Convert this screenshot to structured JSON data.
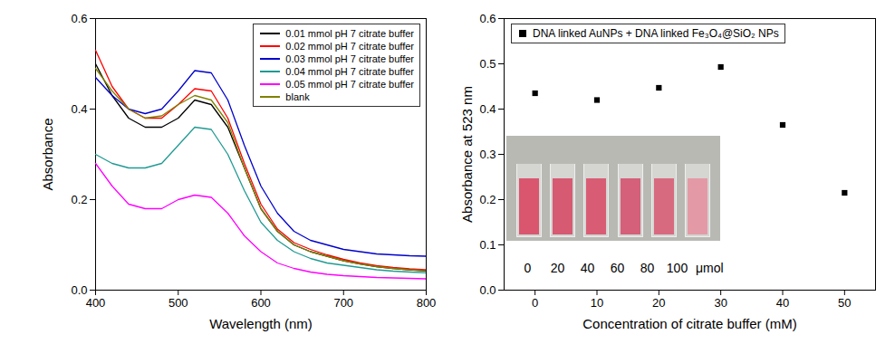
{
  "chart_data": [
    {
      "type": "line",
      "x_label": "Wavelength (nm)",
      "y_label": "Absorbance",
      "x": [
        400,
        420,
        440,
        460,
        480,
        500,
        520,
        540,
        560,
        580,
        600,
        620,
        640,
        660,
        680,
        700,
        720,
        740,
        760,
        780,
        800
      ],
      "xlim": [
        400,
        800
      ],
      "xticks": [
        400,
        500,
        600,
        700,
        800
      ],
      "ylim": [
        0,
        0.6
      ],
      "yticks": [
        {
          "value": 0,
          "label": "0.0"
        },
        0.2,
        0.4,
        0.6
      ],
      "legend": "top-right",
      "series": [
        {
          "name": "0.01 mmol pH 7 citrate buffer",
          "color": "#000000",
          "values": [
            0.5,
            0.43,
            0.38,
            0.36,
            0.36,
            0.38,
            0.42,
            0.41,
            0.36,
            0.27,
            0.18,
            0.13,
            0.1,
            0.085,
            0.075,
            0.065,
            0.058,
            0.052,
            0.048,
            0.045,
            0.042
          ]
        },
        {
          "name": "0.02 mmol pH 7 citrate buffer",
          "color": "#ff0000",
          "values": [
            0.53,
            0.45,
            0.4,
            0.38,
            0.38,
            0.41,
            0.445,
            0.44,
            0.38,
            0.28,
            0.19,
            0.135,
            0.105,
            0.09,
            0.078,
            0.068,
            0.06,
            0.054,
            0.05,
            0.047,
            0.045
          ]
        },
        {
          "name": "0.03 mmol pH 7 citrate buffer",
          "color": "#0000cc",
          "values": [
            0.47,
            0.43,
            0.4,
            0.39,
            0.4,
            0.44,
            0.485,
            0.48,
            0.42,
            0.32,
            0.23,
            0.17,
            0.13,
            0.11,
            0.1,
            0.09,
            0.085,
            0.08,
            0.078,
            0.076,
            0.075
          ]
        },
        {
          "name": "0.04 mmol pH 7 citrate buffer",
          "color": "#1f9a92",
          "values": [
            0.3,
            0.28,
            0.27,
            0.27,
            0.28,
            0.32,
            0.36,
            0.355,
            0.3,
            0.22,
            0.15,
            0.11,
            0.085,
            0.07,
            0.06,
            0.055,
            0.05,
            0.045,
            0.042,
            0.04,
            0.038
          ]
        },
        {
          "name": "0.05 mmol pH 7 citrate buffer",
          "color": "#ff00ff",
          "values": [
            0.28,
            0.23,
            0.19,
            0.18,
            0.18,
            0.2,
            0.21,
            0.205,
            0.17,
            0.12,
            0.085,
            0.06,
            0.048,
            0.04,
            0.035,
            0.032,
            0.03,
            0.028,
            0.027,
            0.026,
            0.025
          ]
        },
        {
          "name": "blank",
          "color": "#808000",
          "values": [
            0.49,
            0.44,
            0.4,
            0.38,
            0.385,
            0.41,
            0.43,
            0.42,
            0.37,
            0.27,
            0.18,
            0.13,
            0.1,
            0.085,
            0.075,
            0.065,
            0.058,
            0.052,
            0.048,
            0.045,
            0.043
          ]
        }
      ]
    },
    {
      "type": "scatter",
      "x_label": "Concentration of citrate buffer (mM)",
      "y_label": "Absorbance at 523 nm",
      "x": [
        0,
        10,
        20,
        30,
        40,
        50
      ],
      "xlim": [
        -5,
        55
      ],
      "xticks": [
        0,
        10,
        20,
        30,
        40,
        50
      ],
      "ylim": [
        0,
        0.6
      ],
      "yticks": [
        {
          "value": 0,
          "label": "0.0"
        },
        0.1,
        0.2,
        0.3,
        0.4,
        0.5,
        0.6
      ],
      "legend": "top-left",
      "series": [
        {
          "name": "DNA linked AuNPs + DNA linked Fe₃O₄@SiO₂ NPs",
          "color": "#000000",
          "marker": "square",
          "values": [
            0.435,
            0.42,
            0.447,
            0.493,
            0.365,
            0.215
          ]
        }
      ],
      "annotations": [
        "0",
        "20",
        "40",
        "60",
        "80",
        "100",
        "μmol"
      ]
    }
  ]
}
